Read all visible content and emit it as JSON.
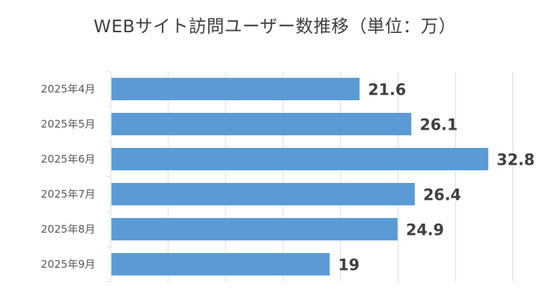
{
  "chart_data": {
    "type": "bar",
    "orientation": "horizontal",
    "title": "WEBサイト訪問ユーザー数推移（単位：万）",
    "categories": [
      "2025年4月",
      "2025年5月",
      "2025年6月",
      "2025年7月",
      "2025年8月",
      "2025年9月"
    ],
    "values": [
      21.6,
      26.1,
      32.8,
      26.4,
      24.9,
      19
    ],
    "value_labels": [
      "21.6",
      "26.1",
      "32.8",
      "26.4",
      "24.9",
      "19"
    ],
    "xlim": [
      0,
      35
    ],
    "x_gridline_step": 5,
    "grid": true,
    "bar_color": "#5B9BD5",
    "gridline_color": "#D9D9D9",
    "legend": "none"
  }
}
